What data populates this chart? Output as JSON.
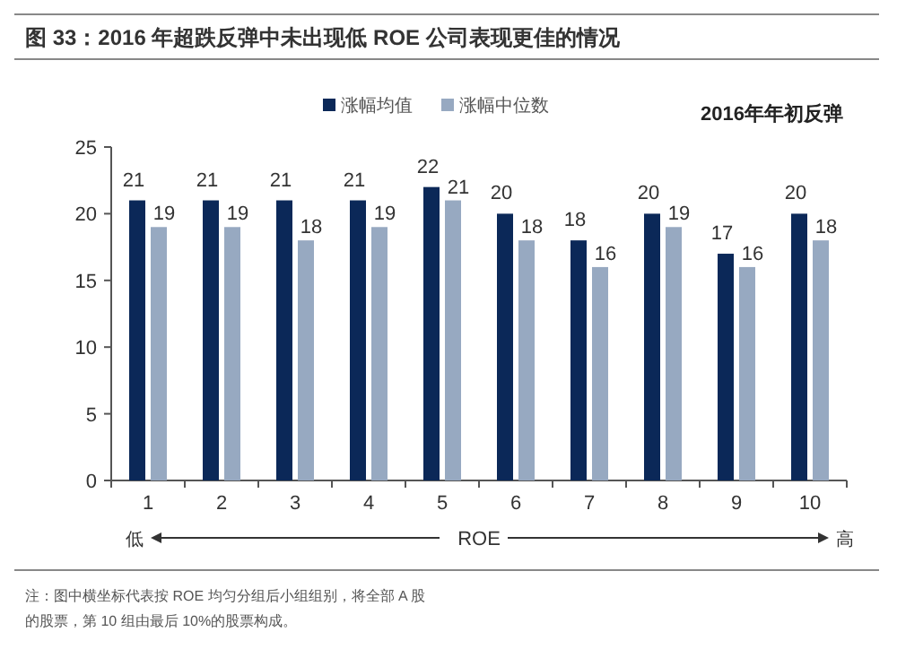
{
  "chart_data": {
    "type": "bar",
    "title": "图 33：2016 年超跌反弹中未出现低 ROE 公司表现更佳的情况",
    "subtitle": "2016年年初反弹",
    "xlabel": "ROE",
    "categories": [
      "1",
      "2",
      "3",
      "4",
      "5",
      "6",
      "7",
      "8",
      "9",
      "10"
    ],
    "series": [
      {
        "name": "涨幅均值",
        "color": "#0b2858",
        "values": [
          21,
          21,
          21,
          21,
          22,
          20,
          18,
          20,
          17,
          20
        ]
      },
      {
        "name": "涨幅中位数",
        "color": "#97a9c1",
        "values": [
          19,
          19,
          18,
          19,
          21,
          18,
          16,
          19,
          16,
          18
        ]
      }
    ],
    "ylim": [
      0,
      25
    ],
    "yticks": [
      0,
      5,
      10,
      15,
      20,
      25
    ],
    "data_labels": true,
    "legend": "top",
    "grid": false,
    "annotations": [
      "低",
      "高",
      "注：图中横坐标代表按 ROE 均匀分组后小组组别，将全部 A 股",
      "的股票，第 10 组由最后 10%的股票构成。"
    ]
  }
}
